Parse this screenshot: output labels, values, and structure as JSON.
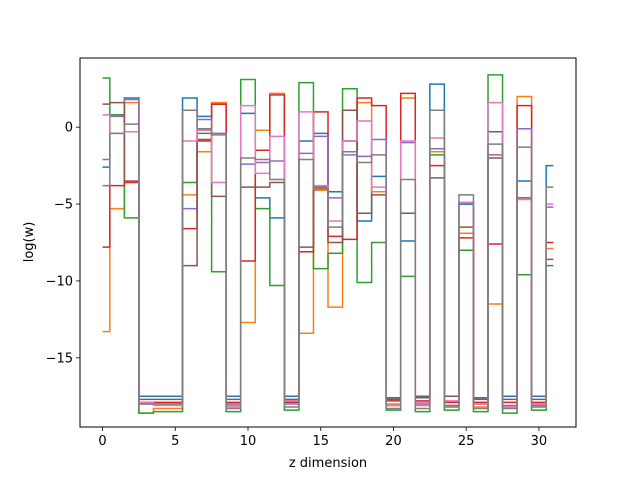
{
  "chart_data": {
    "type": "line",
    "drawstyle": "steps-mid",
    "xlabel": "z dimension",
    "ylabel": "log(w)",
    "xlim": [
      -1.55,
      32.55
    ],
    "ylim": [
      -19.5,
      4.5
    ],
    "xticks": [
      0,
      5,
      10,
      15,
      20,
      25,
      30
    ],
    "yticks": [
      -15,
      -10,
      -5,
      0
    ],
    "x": [
      0,
      1,
      2,
      3,
      4,
      5,
      6,
      7,
      8,
      9,
      10,
      11,
      12,
      13,
      14,
      15,
      16,
      17,
      18,
      19,
      20,
      21,
      22,
      23,
      24,
      25,
      26,
      27,
      28,
      29,
      30,
      31
    ],
    "series": [
      {
        "color": "#1f77b4",
        "values": [
          -2.6,
          0.8,
          1.9,
          -17.5,
          -17.5,
          -17.5,
          1.9,
          0.7,
          1.5,
          -17.5,
          0.9,
          -4.6,
          -5.9,
          -17.5,
          -0.9,
          -0.4,
          -4.2,
          -0.9,
          -6.1,
          -3.2,
          -17.7,
          -7.4,
          -17.6,
          2.8,
          -17.5,
          -5.0,
          -17.6,
          -0.3,
          -17.5,
          -3.5,
          -17.5,
          -2.5
        ]
      },
      {
        "color": "#ff7f0e",
        "values": [
          -13.3,
          -5.3,
          1.6,
          -18.6,
          -18.3,
          -18.3,
          -4.4,
          -1.6,
          1.6,
          -18.1,
          -12.7,
          -0.2,
          2.2,
          -17.8,
          -13.4,
          -4.1,
          -11.7,
          -0.9,
          1.6,
          -4.2,
          -18.0,
          1.9,
          -18.1,
          -1.6,
          -18.1,
          -6.9,
          -18.2,
          -11.5,
          -18.2,
          2.0,
          -18.0,
          -7.9
        ]
      },
      {
        "color": "#2ca02c",
        "values": [
          3.2,
          0.8,
          -5.9,
          -18.6,
          -18.5,
          -18.5,
          -3.6,
          -0.4,
          -9.4,
          -18.5,
          3.1,
          -5.3,
          -10.3,
          -18.4,
          2.9,
          -9.2,
          -8.2,
          2.5,
          -10.1,
          -7.5,
          -18.4,
          -9.7,
          -18.5,
          -1.8,
          -18.4,
          -8.0,
          -18.5,
          3.4,
          -18.6,
          -9.6,
          -18.4,
          -9.0
        ]
      },
      {
        "color": "#d62728",
        "values": [
          -7.8,
          -3.8,
          -3.6,
          -17.9,
          -17.9,
          -17.9,
          -6.6,
          -0.9,
          1.5,
          -17.9,
          -8.7,
          -1.5,
          2.1,
          -17.9,
          -8.1,
          1.0,
          -7.1,
          -7.3,
          1.9,
          1.4,
          -17.8,
          2.2,
          -17.8,
          -2.5,
          -17.9,
          -7.2,
          -17.9,
          -7.6,
          -17.9,
          1.4,
          -17.9,
          -7.5
        ]
      },
      {
        "color": "#9467bd",
        "values": [
          -2.1,
          0.7,
          1.8,
          -18.0,
          -18.0,
          -18.0,
          -5.3,
          0.5,
          -0.4,
          -18.0,
          -2.4,
          -2.3,
          -2.2,
          -18.0,
          -1.7,
          -0.6,
          -4.6,
          -1.8,
          -1.9,
          -0.8,
          -18.1,
          -1.0,
          -18.0,
          -1.4,
          -18.1,
          -4.9,
          -18.0,
          -1.8,
          -18.1,
          -0.1,
          -18.1,
          -5.2
        ]
      },
      {
        "color": "#8c564b",
        "values": [
          1.5,
          1.6,
          -3.5,
          -17.7,
          -17.7,
          -17.7,
          -9.0,
          -0.8,
          -4.5,
          -17.7,
          -3.9,
          -3.9,
          -3.6,
          -17.7,
          -7.8,
          -3.9,
          -7.5,
          1.1,
          -5.6,
          -4.4,
          -17.6,
          -5.6,
          -17.5,
          -3.3,
          -17.5,
          -6.5,
          -17.7,
          -2.0,
          -17.7,
          -4.6,
          -17.7,
          -8.6
        ]
      },
      {
        "color": "#e377c2",
        "values": [
          0.8,
          -0.4,
          -0.3,
          -17.9,
          -18.1,
          -18.1,
          -0.9,
          -0.2,
          -3.6,
          -18.2,
          1.4,
          -3.0,
          -0.6,
          -17.8,
          1.0,
          -3.8,
          -6.1,
          -0.9,
          0.4,
          -3.9,
          -18.1,
          -0.9,
          -17.9,
          -0.7,
          -17.8,
          -4.9,
          -18.0,
          1.6,
          -18.2,
          -4.7,
          -18.0,
          -5.0
        ]
      },
      {
        "color": "#7f7f7f",
        "values": [
          -3.8,
          -0.4,
          0.2,
          -18.0,
          -18.0,
          -18.0,
          1.1,
          -0.1,
          -0.5,
          -18.3,
          -2.0,
          -2.1,
          -3.4,
          -18.2,
          -2.1,
          -4.0,
          -6.5,
          -1.6,
          -2.3,
          -1.8,
          -18.3,
          -3.4,
          -18.3,
          1.1,
          -18.2,
          -4.4,
          -18.3,
          -1.1,
          -18.3,
          -1.3,
          -18.2,
          -3.9
        ]
      }
    ]
  }
}
